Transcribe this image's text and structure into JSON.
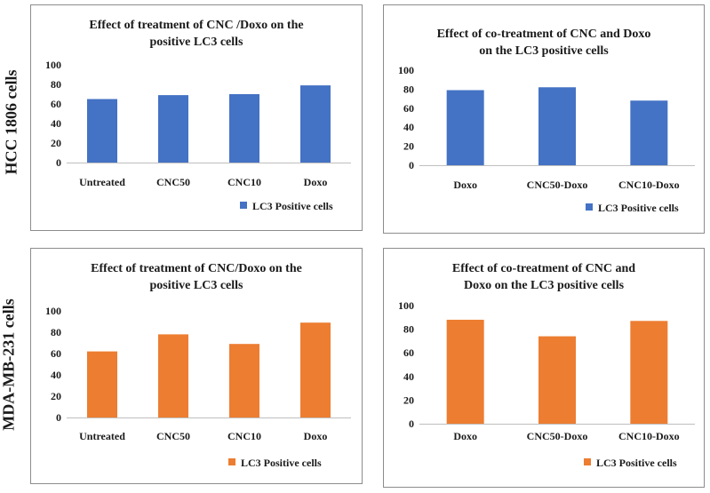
{
  "row_labels": [
    "HCC 1806 cells",
    "MDA-MB-231 cells"
  ],
  "chart_data": [
    {
      "type": "bar",
      "title_lines": [
        "Effect of treatment of CNC /Doxo on the",
        "positive LC3 cells"
      ],
      "categories": [
        "Untreated",
        "CNC50",
        "CNC10",
        "Doxo"
      ],
      "series": [
        {
          "name": "LC3 Positive cells",
          "values": [
            65,
            69,
            70,
            79
          ]
        }
      ],
      "yticks": [
        0,
        20,
        40,
        60,
        80,
        100
      ],
      "ylim": [
        0,
        100
      ],
      "color": "#4472C4"
    },
    {
      "type": "bar",
      "title_lines": [
        "Effect of co-treatment of CNC and Doxo",
        "on the  LC3 positive cells"
      ],
      "categories": [
        "Doxo",
        "CNC50-Doxo",
        "CNC10-Doxo"
      ],
      "series": [
        {
          "name": "LC3 Positive cells",
          "values": [
            79,
            82,
            68
          ]
        }
      ],
      "yticks": [
        0,
        20,
        40,
        60,
        80,
        100
      ],
      "ylim": [
        0,
        100
      ],
      "color": "#4472C4"
    },
    {
      "type": "bar",
      "title_lines": [
        "Effect of treatment of CNC/Doxo on the",
        "positive LC3 cells"
      ],
      "categories": [
        "Untreated",
        "CNC50",
        "CNC10",
        "Doxo"
      ],
      "series": [
        {
          "name": "LC3 Positive cells",
          "values": [
            62,
            78,
            69,
            89
          ]
        }
      ],
      "yticks": [
        0,
        20,
        40,
        60,
        80,
        100
      ],
      "ylim": [
        0,
        100
      ],
      "color": "#ED7D31"
    },
    {
      "type": "bar",
      "title_lines": [
        "Effect of  co-treatment of CNC and",
        "Doxo on the  LC3 positive cells"
      ],
      "categories": [
        "Doxo",
        "CNC50-Doxo",
        "CNC10-Doxo"
      ],
      "series": [
        {
          "name": "LC3 Positive cells",
          "values": [
            88,
            74,
            87
          ]
        }
      ],
      "yticks": [
        0,
        20,
        40,
        60,
        80,
        100
      ],
      "ylim": [
        0,
        100
      ],
      "color": "#ED7D31"
    }
  ]
}
